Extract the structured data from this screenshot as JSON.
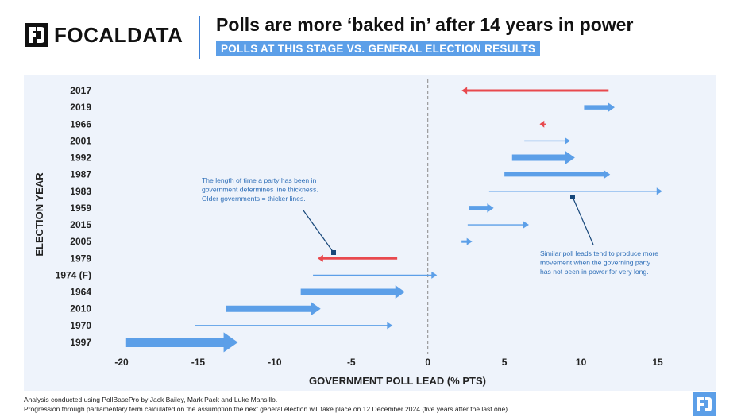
{
  "brand": {
    "name": "FOCALDATA"
  },
  "header": {
    "title": "Polls are more ‘baked in’ after 14 years in power",
    "subtitle": "POLLS AT THIS STAGE VS. GENERAL ELECTION RESULTS"
  },
  "annotations": {
    "left": [
      "The length of time a party has been in",
      "government determines line thickness.",
      "Older governments = thicker lines."
    ],
    "right": [
      "Similar poll leads tend to produce more",
      "movement when the governing party",
      "has not been in power for very long."
    ]
  },
  "footnotes": [
    "Analysis conducted using PollBasePro by Jack Bailey, Mark Pack and Luke Mansillo.",
    "Progression through parliamentary term calculated on the assumption the next general election will take place on 12 December 2024 (five years after the last one)."
  ],
  "colors": {
    "blue": "#5c9fe8",
    "red": "#e8494e",
    "dark_blue": "#17477a",
    "background": "#eef3fb"
  },
  "chart_data": {
    "type": "arrow",
    "xlabel": "GOVERNMENT POLL LEAD (% PTS)",
    "ylabel": "ELECTION YEAR",
    "xlim": [
      -21,
      18.5
    ],
    "xticks": [
      -20,
      -15,
      -10,
      -5,
      0,
      5,
      10,
      15
    ],
    "reference_line_x": 0,
    "series": [
      {
        "year": "2017",
        "start": 11.8,
        "end": 2.2,
        "thickness": 2,
        "color": "red"
      },
      {
        "year": "2019",
        "start": 10.2,
        "end": 12.2,
        "thickness": 3,
        "color": "blue"
      },
      {
        "year": "1966",
        "start": 7.7,
        "end": 7.3,
        "thickness": 1,
        "color": "red"
      },
      {
        "year": "2001",
        "start": 6.3,
        "end": 9.3,
        "thickness": 1,
        "color": "blue"
      },
      {
        "year": "1992",
        "start": 5.5,
        "end": 9.6,
        "thickness": 4,
        "color": "blue"
      },
      {
        "year": "1987",
        "start": 5.0,
        "end": 11.9,
        "thickness": 3,
        "color": "blue"
      },
      {
        "year": "1983",
        "start": 4.0,
        "end": 15.3,
        "thickness": 1,
        "color": "blue"
      },
      {
        "year": "1959",
        "start": 2.7,
        "end": 4.3,
        "thickness": 3,
        "color": "blue"
      },
      {
        "year": "2015",
        "start": 2.6,
        "end": 6.6,
        "thickness": 1,
        "color": "blue"
      },
      {
        "year": "2005",
        "start": 2.2,
        "end": 2.9,
        "thickness": 2,
        "color": "blue"
      },
      {
        "year": "1979",
        "start": -2.0,
        "end": -7.2,
        "thickness": 2,
        "color": "red"
      },
      {
        "year": "1974 (F)",
        "start": -7.5,
        "end": 0.6,
        "thickness": 1,
        "color": "blue"
      },
      {
        "year": "1964",
        "start": -8.3,
        "end": -1.5,
        "thickness": 4,
        "color": "blue"
      },
      {
        "year": "2010",
        "start": -13.2,
        "end": -7.0,
        "thickness": 4,
        "color": "blue"
      },
      {
        "year": "1970",
        "start": -15.2,
        "end": -2.3,
        "thickness": 1,
        "color": "blue"
      },
      {
        "year": "1997",
        "start": -19.7,
        "end": -12.4,
        "thickness": 5,
        "color": "blue"
      }
    ]
  }
}
